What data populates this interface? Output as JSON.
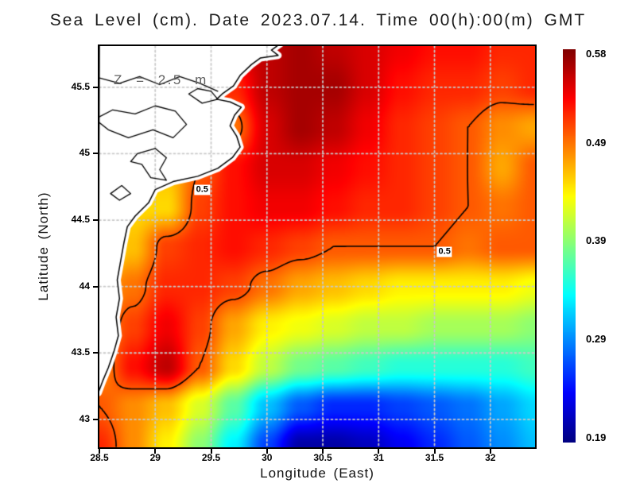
{
  "annotation": "Z = 2.5 m",
  "chart_data": {
    "type": "heatmap",
    "title": "Sea Level (cm). Date 2023.07.14. Time 00(h):00(m) GMT",
    "xlabel": "Longitude (East)",
    "ylabel": "Latitude (North)",
    "lon_range": [
      28.5,
      32.4
    ],
    "lat_range": [
      42.79,
      45.81
    ],
    "x_ticks": [
      28.5,
      29,
      29.5,
      30,
      30.5,
      31,
      31.5,
      32
    ],
    "y_ticks": [
      45.5,
      45,
      44.5,
      44,
      43.5,
      43
    ],
    "grid_on": true,
    "contour_level": 0.5,
    "contour_labels": [
      {
        "text": "0.5",
        "lon": 29.42,
        "lat": 44.73
      },
      {
        "text": "0.5",
        "lon": 31.59,
        "lat": 44.26
      }
    ],
    "lons": [
      28.5,
      28.8,
      29.1,
      29.4,
      29.7,
      30.0,
      30.3,
      30.6,
      30.9,
      31.2,
      31.5,
      31.8,
      32.1,
      32.4
    ],
    "lats": [
      45.8,
      45.5,
      45.2,
      44.9,
      44.6,
      44.3,
      44.0,
      43.7,
      43.4,
      43.1,
      42.8
    ],
    "values": [
      [
        0.53,
        0.54,
        0.54,
        0.55,
        0.55,
        0.56,
        0.57,
        0.56,
        0.55,
        0.54,
        0.53,
        0.53,
        0.52,
        0.52
      ],
      [
        0.5,
        0.5,
        0.51,
        0.51,
        0.52,
        0.56,
        0.57,
        0.57,
        0.55,
        0.53,
        0.52,
        0.52,
        0.51,
        0.52
      ],
      [
        0.48,
        0.48,
        0.49,
        0.49,
        0.49,
        0.55,
        0.57,
        0.56,
        0.54,
        0.52,
        0.51,
        0.5,
        0.48,
        0.47
      ],
      [
        0.46,
        0.46,
        0.46,
        0.5,
        0.53,
        0.55,
        0.55,
        0.54,
        0.53,
        0.52,
        0.51,
        0.5,
        0.47,
        0.5
      ],
      [
        0.45,
        0.45,
        0.45,
        0.51,
        0.53,
        0.54,
        0.54,
        0.53,
        0.52,
        0.52,
        0.51,
        0.5,
        0.49,
        0.5
      ],
      [
        0.44,
        0.46,
        0.51,
        0.52,
        0.53,
        0.52,
        0.51,
        0.5,
        0.5,
        0.5,
        0.5,
        0.49,
        0.5,
        0.5
      ],
      [
        0.47,
        0.49,
        0.52,
        0.52,
        0.51,
        0.49,
        0.47,
        0.46,
        0.45,
        0.44,
        0.44,
        0.44,
        0.44,
        0.43
      ],
      [
        0.48,
        0.51,
        0.54,
        0.51,
        0.47,
        0.44,
        0.43,
        0.42,
        0.41,
        0.41,
        0.4,
        0.4,
        0.4,
        0.39
      ],
      [
        0.48,
        0.53,
        0.56,
        0.5,
        0.45,
        0.41,
        0.38,
        0.37,
        0.36,
        0.35,
        0.35,
        0.35,
        0.35,
        0.36
      ],
      [
        0.5,
        0.48,
        0.46,
        0.42,
        0.37,
        0.31,
        0.27,
        0.25,
        0.25,
        0.26,
        0.27,
        0.28,
        0.3,
        0.32
      ],
      [
        0.52,
        0.48,
        0.44,
        0.39,
        0.33,
        0.26,
        0.2,
        0.2,
        0.21,
        0.23,
        0.25,
        0.27,
        0.29,
        0.31
      ]
    ],
    "colorbar": {
      "tick_labels": [
        "0.58",
        "0.49",
        "0.39",
        "0.29",
        "0.19"
      ],
      "vmin": 0.185,
      "vmax": 0.585,
      "colormap": "jet"
    },
    "colors": {
      "grid": "#c9c9c9",
      "land_fill": "#ffffff",
      "coastline": "#000000",
      "contour": "#000000",
      "annotation": "#606060"
    },
    "land": {
      "main": [
        [
          28.5,
          45.84
        ],
        [
          30.14,
          45.84
        ],
        [
          30.04,
          45.78
        ],
        [
          30.1,
          45.74
        ],
        [
          29.94,
          45.72
        ],
        [
          29.86,
          45.67
        ],
        [
          29.76,
          45.59
        ],
        [
          29.7,
          45.51
        ],
        [
          29.6,
          45.45
        ],
        [
          29.55,
          45.41
        ],
        [
          29.67,
          45.39
        ],
        [
          29.77,
          45.35
        ],
        [
          29.71,
          45.29
        ],
        [
          29.67,
          45.21
        ],
        [
          29.73,
          45.13
        ],
        [
          29.76,
          45.05
        ],
        [
          29.69,
          44.97
        ],
        [
          29.56,
          44.89
        ],
        [
          29.38,
          44.83
        ],
        [
          29.16,
          44.79
        ],
        [
          29.0,
          44.73
        ],
        [
          28.94,
          44.63
        ],
        [
          28.82,
          44.53
        ],
        [
          28.75,
          44.45
        ],
        [
          28.72,
          44.33
        ],
        [
          28.69,
          44.19
        ],
        [
          28.66,
          44.05
        ],
        [
          28.68,
          43.91
        ],
        [
          28.65,
          43.77
        ],
        [
          28.67,
          43.63
        ],
        [
          28.63,
          43.51
        ],
        [
          28.58,
          43.39
        ],
        [
          28.53,
          43.29
        ],
        [
          28.49,
          43.2
        ]
      ],
      "lakes": [
        [
          [
            28.46,
            45.26
          ],
          [
            28.62,
            45.33
          ],
          [
            28.82,
            45.3
          ],
          [
            29.0,
            45.36
          ],
          [
            29.18,
            45.32
          ],
          [
            29.28,
            45.22
          ],
          [
            29.16,
            45.12
          ],
          [
            28.98,
            45.18
          ],
          [
            28.76,
            45.12
          ],
          [
            28.58,
            45.18
          ]
        ],
        [
          [
            28.84,
            45.0
          ],
          [
            29.0,
            45.04
          ],
          [
            29.1,
            44.97
          ],
          [
            29.04,
            44.88
          ],
          [
            29.1,
            44.8
          ],
          [
            28.96,
            44.82
          ],
          [
            28.88,
            44.92
          ],
          [
            28.78,
            44.94
          ]
        ],
        [
          [
            28.6,
            44.7
          ],
          [
            28.7,
            44.76
          ],
          [
            28.78,
            44.7
          ],
          [
            28.68,
            44.65
          ]
        ],
        [
          [
            29.3,
            45.45
          ],
          [
            29.42,
            45.38
          ],
          [
            29.56,
            45.41
          ],
          [
            29.5,
            45.47
          ],
          [
            29.38,
            45.49
          ]
        ]
      ],
      "lines": [
        [
          [
            28.5,
            45.57
          ],
          [
            28.68,
            45.53
          ],
          [
            28.86,
            45.58
          ],
          [
            29.04,
            45.52
          ],
          [
            29.22,
            45.58
          ],
          [
            29.4,
            45.53
          ],
          [
            29.56,
            45.47
          ]
        ]
      ]
    }
  }
}
